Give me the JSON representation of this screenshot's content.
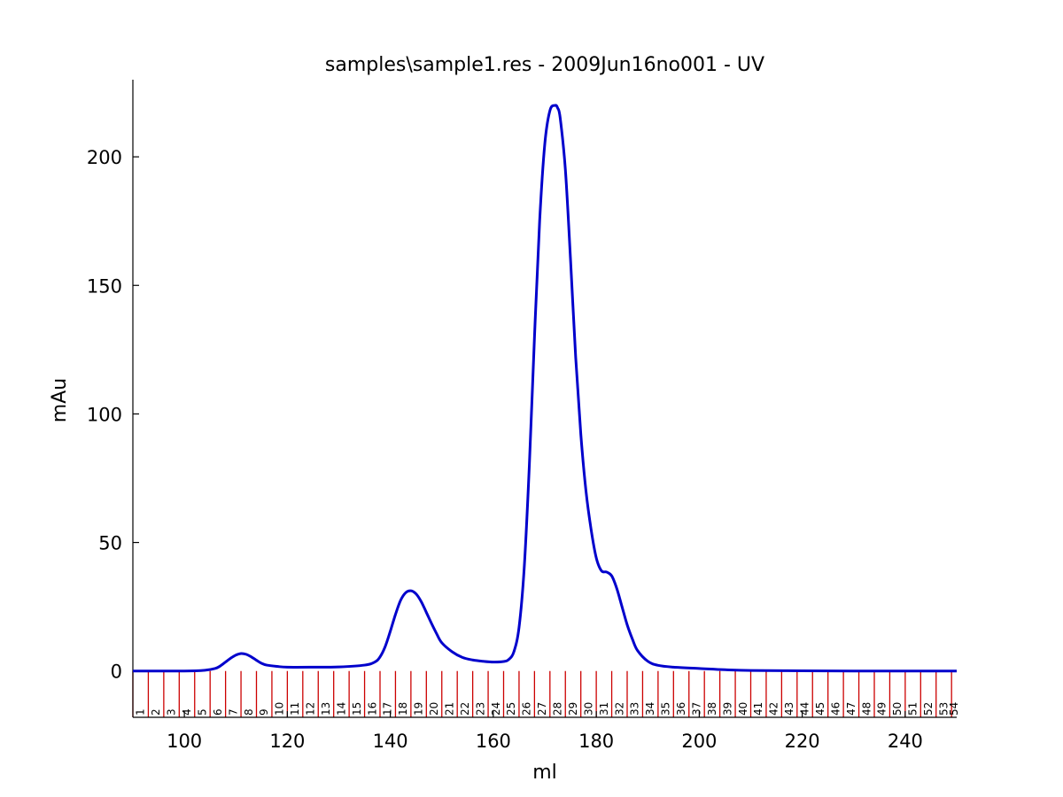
{
  "chart_data": {
    "type": "line",
    "title": "samples\\sample1.res - 2009Jun16no001 - UV",
    "xlabel": "ml",
    "ylabel": "mAu",
    "xlim": [
      90,
      250
    ],
    "ylim": [
      -18,
      230
    ],
    "x_ticks": [
      "100",
      "120",
      "140",
      "160",
      "180",
      "200",
      "220",
      "240"
    ],
    "y_ticks": [
      "0",
      "50",
      "100",
      "150",
      "200"
    ],
    "grid": false,
    "legend": "none",
    "colors": {
      "trace": "#0000cc",
      "fraction": "#cc0000"
    },
    "series": [
      {
        "x": [
          90,
          100,
          104,
          106,
          107,
          108,
          109,
          110,
          111,
          112,
          113,
          114,
          115,
          116,
          118,
          120,
          125,
          130,
          135,
          137,
          138,
          139,
          140,
          141,
          142,
          143,
          144,
          145,
          146,
          147,
          148,
          149,
          150,
          152,
          154,
          156,
          158,
          160,
          162,
          163,
          164,
          165,
          166,
          167,
          168,
          169,
          170,
          171,
          172,
          172.5,
          173,
          174,
          175,
          176,
          177,
          178,
          179,
          180,
          181,
          182,
          183,
          184,
          185,
          186,
          187,
          188,
          190,
          192,
          195,
          200,
          205,
          210,
          220,
          230,
          240,
          250
        ],
        "y": [
          0,
          0,
          0.3,
          1.0,
          2.0,
          3.5,
          5.0,
          6.2,
          6.8,
          6.5,
          5.5,
          4.2,
          3.0,
          2.3,
          1.8,
          1.5,
          1.5,
          1.6,
          2.3,
          3.5,
          5.5,
          9.5,
          15.5,
          22.0,
          27.5,
          30.5,
          31.2,
          30.0,
          27.0,
          22.8,
          18.5,
          14.5,
          11.0,
          7.5,
          5.3,
          4.3,
          3.8,
          3.5,
          3.7,
          4.5,
          7.5,
          17.0,
          40.0,
          80.0,
          130.0,
          175.0,
          205.0,
          218.0,
          220.0,
          219.0,
          215.0,
          195.0,
          160.0,
          122.0,
          92.0,
          70.0,
          55.0,
          44.0,
          39.0,
          38.5,
          37.0,
          32.0,
          25.0,
          18.0,
          12.5,
          8.0,
          3.8,
          2.2,
          1.5,
          1.0,
          0.5,
          0.2,
          0.1,
          0,
          0,
          0
        ]
      }
    ],
    "fractions": {
      "labels": [
        "1",
        "2",
        "3",
        "4",
        "5",
        "6",
        "7",
        "8",
        "9",
        "10",
        "11",
        "12",
        "13",
        "14",
        "15",
        "16",
        "17",
        "18",
        "19",
        "20",
        "21",
        "22",
        "23",
        "24",
        "25",
        "26",
        "27",
        "28",
        "29",
        "30",
        "31",
        "32",
        "33",
        "34",
        "35",
        "36",
        "37",
        "38",
        "39",
        "40",
        "41",
        "42",
        "43",
        "44",
        "45",
        "46",
        "47",
        "48",
        "49",
        "50",
        "51",
        "52",
        "53",
        "54"
      ],
      "start_ml": 90,
      "width_ml": 3,
      "end_ml": 250
    }
  }
}
